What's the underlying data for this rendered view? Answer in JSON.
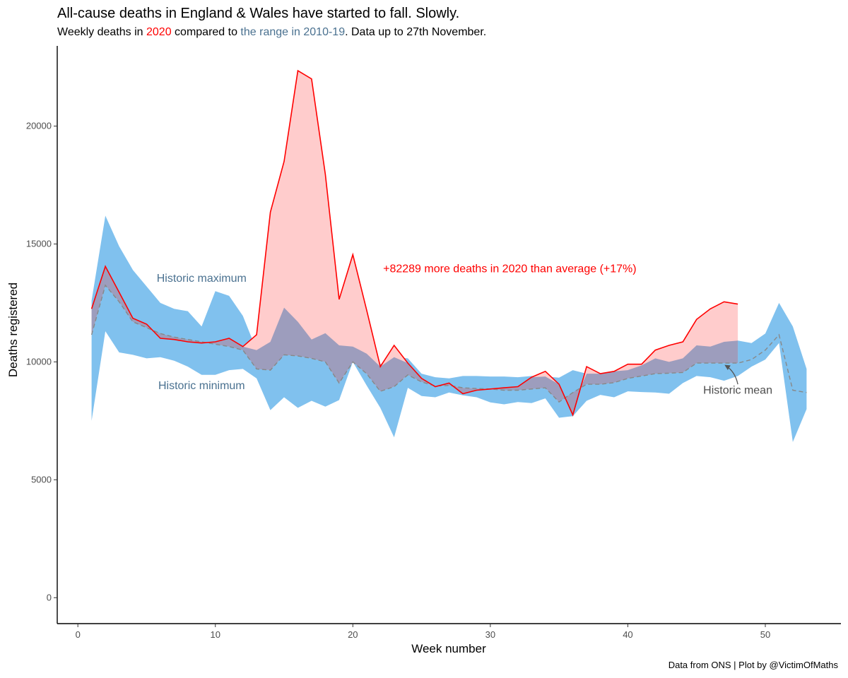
{
  "header": {
    "title": "All-cause deaths in England & Wales have started to fall. Slowly.",
    "subtitle_parts": {
      "p1": "Weekly deaths in ",
      "year": "2020",
      "p2": " compared to ",
      "range": "the range in 2010-19",
      "p3": ". Data up to 27th November."
    }
  },
  "caption": "Data from ONS | Plot by @VictimOfMaths",
  "colors": {
    "current_line": "#ff0000",
    "excess_fill": "#ffcccc",
    "range_fill": "#80c1ee",
    "overlap_fill": "#9d9dbd",
    "mean_line": "#888888",
    "annotation_text": "#4a7190",
    "axis": "#000000"
  },
  "chart_data": {
    "type": "area",
    "title": "All-cause deaths in England & Wales have started to fall. Slowly.",
    "xlabel": "Week number",
    "ylabel": "Deaths registered",
    "xlim": [
      -1.5,
      55.5
    ],
    "ylim": [
      -1100,
      23400
    ],
    "xticks": [
      0,
      10,
      20,
      30,
      40,
      50
    ],
    "yticks": [
      0,
      5000,
      10000,
      15000,
      20000
    ],
    "grid": false,
    "legend": "none",
    "weeks": [
      1,
      2,
      3,
      4,
      5,
      6,
      7,
      8,
      9,
      10,
      11,
      12,
      13,
      14,
      15,
      16,
      17,
      18,
      19,
      20,
      21,
      22,
      23,
      24,
      25,
      26,
      27,
      28,
      29,
      30,
      31,
      32,
      33,
      34,
      35,
      36,
      37,
      38,
      39,
      40,
      41,
      42,
      43,
      44,
      45,
      46,
      47,
      48,
      49,
      50,
      51,
      52,
      53
    ],
    "series": [
      {
        "name": "Historic maximum",
        "values": [
          12600,
          16200,
          14900,
          13900,
          13200,
          12500,
          12250,
          12150,
          11500,
          13000,
          12800,
          11950,
          10500,
          10850,
          12300,
          11700,
          10950,
          11220,
          10700,
          10650,
          10350,
          9900,
          10200,
          10150,
          9500,
          9350,
          9300,
          9400,
          9400,
          9380,
          9380,
          9350,
          9400,
          9380,
          9330,
          9650,
          9500,
          9500,
          9600,
          9650,
          9850,
          10150,
          10000,
          10150,
          10700,
          10650,
          10850,
          10900,
          10800,
          11200,
          12500,
          11500,
          9700
        ]
      },
      {
        "name": "Historic minimum",
        "values": [
          7500,
          11300,
          10400,
          10300,
          10150,
          10200,
          10050,
          9800,
          9450,
          9450,
          9650,
          9700,
          9300,
          7950,
          8500,
          8050,
          8350,
          8100,
          8380,
          10000,
          9000,
          8050,
          6800,
          8900,
          8550,
          8500,
          8700,
          8580,
          8500,
          8280,
          8200,
          8300,
          8250,
          8450,
          7630,
          7700,
          8350,
          8600,
          8500,
          8750,
          8720,
          8700,
          8650,
          9100,
          9400,
          9350,
          9200,
          9400,
          9800,
          10100,
          10800,
          6600,
          8000
        ]
      },
      {
        "name": "Historic mean",
        "values": [
          11150,
          13250,
          12550,
          11700,
          11450,
          11200,
          11050,
          10950,
          10850,
          10750,
          10650,
          10500,
          9700,
          9650,
          10300,
          10250,
          10150,
          10000,
          9100,
          10000,
          9500,
          8750,
          8950,
          9450,
          9150,
          8980,
          9000,
          8900,
          8870,
          8850,
          8800,
          8800,
          8850,
          8900,
          8300,
          8700,
          9050,
          9050,
          9120,
          9300,
          9400,
          9500,
          9520,
          9550,
          9950,
          9950,
          9950,
          9950,
          10100,
          10500,
          11150,
          8800,
          8700
        ]
      },
      {
        "name": "2020",
        "values": [
          12250,
          14050,
          12950,
          11850,
          11600,
          11000,
          10950,
          10850,
          10800,
          10850,
          11000,
          10650,
          11150,
          16350,
          18500,
          22350,
          22000,
          17950,
          12650,
          14550,
          12200,
          9800,
          10700,
          9950,
          9300,
          8950,
          9100,
          8650,
          8800,
          8850,
          8900,
          8950,
          9350,
          9600,
          9050,
          7750,
          9800,
          9500,
          9600,
          9900,
          9900,
          10500,
          10700,
          10850,
          11800,
          12250,
          12550,
          12450
        ]
      }
    ],
    "annotations": {
      "excess": "+82289 more deaths in 2020 than average (+17%)",
      "max_label": "Historic maximum",
      "min_label": "Historic minimum",
      "mean_label": "Historic mean"
    }
  }
}
